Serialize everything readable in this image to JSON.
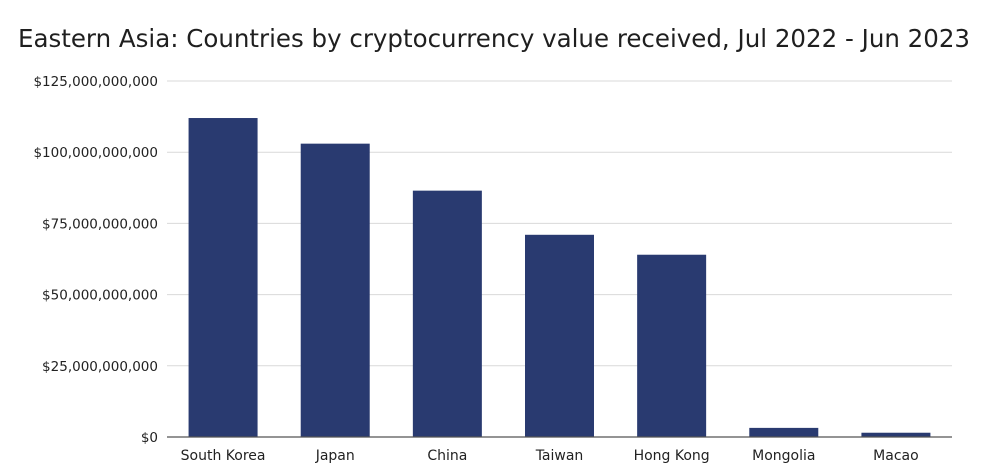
{
  "chart_data": {
    "type": "bar",
    "title": "Eastern Asia: Countries by cryptocurrency value received, Jul 2022 - Jun 2023",
    "xlabel": "",
    "ylabel": "",
    "categories": [
      "South Korea",
      "Japan",
      "China",
      "Taiwan",
      "Hong Kong",
      "Mongolia",
      "Macao"
    ],
    "values": [
      112000000000,
      103000000000,
      86500000000,
      71000000000,
      64000000000,
      3200000000,
      1500000000
    ],
    "ylim": [
      0,
      125000000000
    ],
    "yticks": [
      0,
      25000000000,
      50000000000,
      75000000000,
      100000000000,
      125000000000
    ],
    "ytick_labels": [
      "$0",
      "$25,000,000,000",
      "$50,000,000,000",
      "$75,000,000,000",
      "$100,000,000,000",
      "$125,000,000,000"
    ],
    "grid": true,
    "legend": "none",
    "bar_color": "#293a70"
  }
}
